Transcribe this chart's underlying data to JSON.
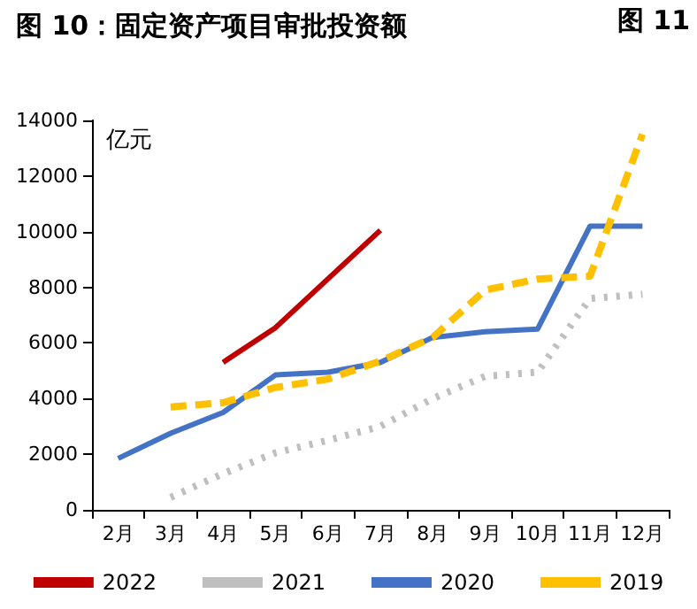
{
  "chart_data": {
    "type": "line",
    "title": "图 10：固定资产项目审批投资额",
    "annotations": [
      "图 11"
    ],
    "ylabel": "亿元",
    "categories": [
      "2月",
      "3月",
      "4月",
      "5月",
      "6月",
      "7月",
      "8月",
      "9月",
      "10月",
      "11月",
      "12月"
    ],
    "series": [
      {
        "name": "2022",
        "color": "#c00000",
        "line_style": "solid",
        "values": [
          null,
          null,
          5300,
          6550,
          8300,
          10050,
          null,
          null,
          null,
          null,
          null
        ]
      },
      {
        "name": "2021",
        "color": "#bfbfbf",
        "line_style": "dotted",
        "values": [
          null,
          450,
          1300,
          2050,
          2500,
          3000,
          4000,
          4800,
          4950,
          7600,
          7750
        ]
      },
      {
        "name": "2020",
        "color": "#4472c4",
        "line_style": "solid",
        "values": [
          1850,
          2750,
          3500,
          4850,
          4950,
          5300,
          6200,
          6400,
          6500,
          10200,
          10200
        ]
      },
      {
        "name": "2019",
        "color": "#ffc000",
        "line_style": "dashed",
        "values": [
          null,
          3700,
          3850,
          4400,
          4700,
          5350,
          6200,
          7900,
          8300,
          8400,
          13500
        ]
      }
    ],
    "ylim": [
      0,
      14000
    ],
    "yticks": [
      0,
      2000,
      4000,
      6000,
      8000,
      10000,
      12000,
      14000
    ],
    "grid": false,
    "legend": "bottom",
    "marker": "none"
  }
}
